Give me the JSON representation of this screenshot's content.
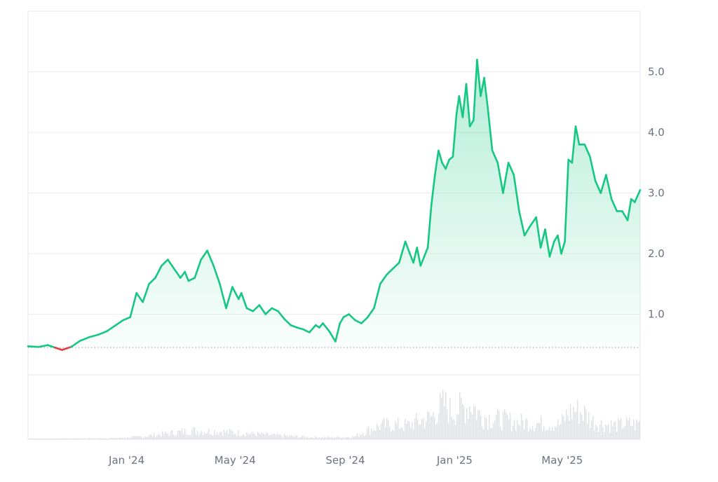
{
  "chart_data": {
    "type": "area",
    "y_axis_side": "right",
    "yticks": [
      1.0,
      2.0,
      3.0,
      4.0,
      5.0
    ],
    "ytick_labels": [
      "1.0",
      "2.0",
      "3.0",
      "4.0",
      "5.0"
    ],
    "ylim": [
      0,
      6
    ],
    "xlim": [
      "2023-09-13",
      "2025-07-27"
    ],
    "xtick_dates": [
      "2024-01-01",
      "2024-05-01",
      "2024-09-01",
      "2025-01-01",
      "2025-05-01"
    ],
    "xtick_labels": [
      "Jan '24",
      "May '24",
      "Sep '24",
      "Jan '25",
      "May '25"
    ],
    "baseline": 0.45,
    "colors": {
      "up_line": "#16c784",
      "down_line": "#ea3943",
      "baseline": "#9ca3af",
      "grid": "#ececec",
      "volume": "#d1d5db"
    },
    "series": [
      {
        "x": [
          "2023-09-13",
          "2023-09-25",
          "2023-10-05",
          "2023-10-13",
          "2023-10-21",
          "2023-10-31",
          "2023-11-10",
          "2023-11-20",
          "2023-11-30",
          "2023-12-10",
          "2023-12-20",
          "2023-12-28",
          "2024-01-05",
          "2024-01-12",
          "2024-01-19",
          "2024-01-26",
          "2024-02-02",
          "2024-02-09",
          "2024-02-16",
          "2024-02-23",
          "2024-03-01",
          "2024-03-06",
          "2024-03-10",
          "2024-03-17",
          "2024-03-24",
          "2024-03-31",
          "2024-04-07",
          "2024-04-14",
          "2024-04-21",
          "2024-04-28",
          "2024-05-05",
          "2024-05-08",
          "2024-05-14",
          "2024-05-21",
          "2024-05-28",
          "2024-06-04",
          "2024-06-11",
          "2024-06-18",
          "2024-06-25",
          "2024-07-02",
          "2024-07-09",
          "2024-07-16",
          "2024-07-23",
          "2024-07-30",
          "2024-08-03",
          "2024-08-07",
          "2024-08-14",
          "2024-08-21",
          "2024-08-26",
          "2024-08-30",
          "2024-09-05",
          "2024-09-12",
          "2024-09-19",
          "2024-09-26",
          "2024-10-03",
          "2024-10-10",
          "2024-10-17",
          "2024-10-24",
          "2024-10-31",
          "2024-11-07",
          "2024-11-12",
          "2024-11-16",
          "2024-11-20",
          "2024-11-24",
          "2024-11-28",
          "2024-12-02",
          "2024-12-06",
          "2024-12-10",
          "2024-12-14",
          "2024-12-18",
          "2024-12-22",
          "2024-12-26",
          "2024-12-30",
          "2025-01-03",
          "2025-01-06",
          "2025-01-10",
          "2025-01-14",
          "2025-01-18",
          "2025-01-22",
          "2025-01-26",
          "2025-01-30",
          "2025-02-03",
          "2025-02-07",
          "2025-02-12",
          "2025-02-18",
          "2025-02-24",
          "2025-03-02",
          "2025-03-08",
          "2025-03-14",
          "2025-03-20",
          "2025-03-26",
          "2025-04-02",
          "2025-04-07",
          "2025-04-12",
          "2025-04-17",
          "2025-04-22",
          "2025-04-26",
          "2025-04-30",
          "2025-05-04",
          "2025-05-08",
          "2025-05-12",
          "2025-05-16",
          "2025-05-20",
          "2025-05-26",
          "2025-06-01",
          "2025-06-07",
          "2025-06-13",
          "2025-06-19",
          "2025-06-25",
          "2025-07-01",
          "2025-07-07",
          "2025-07-13",
          "2025-07-17",
          "2025-07-21",
          "2025-07-27"
        ],
        "y": [
          0.47,
          0.46,
          0.49,
          0.45,
          0.41,
          0.46,
          0.56,
          0.62,
          0.66,
          0.72,
          0.82,
          0.9,
          0.95,
          1.35,
          1.2,
          1.5,
          1.6,
          1.8,
          1.9,
          1.75,
          1.6,
          1.7,
          1.55,
          1.6,
          1.9,
          2.05,
          1.8,
          1.5,
          1.1,
          1.45,
          1.25,
          1.35,
          1.1,
          1.05,
          1.15,
          1.0,
          1.1,
          1.05,
          0.92,
          0.82,
          0.78,
          0.75,
          0.7,
          0.82,
          0.78,
          0.85,
          0.72,
          0.55,
          0.85,
          0.95,
          1.0,
          0.9,
          0.85,
          0.95,
          1.1,
          1.5,
          1.65,
          1.75,
          1.85,
          2.2,
          2.0,
          1.85,
          2.1,
          1.8,
          1.95,
          2.1,
          2.8,
          3.3,
          3.7,
          3.5,
          3.4,
          3.55,
          3.6,
          4.3,
          4.6,
          4.25,
          4.8,
          4.1,
          4.2,
          5.2,
          4.6,
          4.9,
          4.4,
          3.7,
          3.5,
          3.0,
          3.5,
          3.3,
          2.7,
          2.3,
          2.45,
          2.6,
          2.1,
          2.4,
          1.95,
          2.2,
          2.3,
          2.0,
          2.2,
          3.55,
          3.5,
          4.1,
          3.8,
          3.8,
          3.6,
          3.2,
          3.0,
          3.3,
          2.9,
          2.7,
          2.7,
          2.55,
          2.9,
          2.85,
          3.05
        ]
      }
    ],
    "volume": {
      "x": [
        "2023-09-13",
        "2023-10-15",
        "2023-11-15",
        "2023-12-15",
        "2024-01-15",
        "2024-02-15",
        "2024-03-15",
        "2024-04-15",
        "2024-05-15",
        "2024-06-15",
        "2024-07-15",
        "2024-08-15",
        "2024-09-10",
        "2024-09-25",
        "2024-10-10",
        "2024-10-25",
        "2024-11-08",
        "2024-11-18",
        "2024-11-28",
        "2024-12-05",
        "2024-12-12",
        "2024-12-20",
        "2024-12-28",
        "2025-01-04",
        "2025-01-12",
        "2025-01-20",
        "2025-01-28",
        "2025-02-05",
        "2025-02-15",
        "2025-02-25",
        "2025-03-08",
        "2025-03-20",
        "2025-04-02",
        "2025-04-15",
        "2025-04-28",
        "2025-05-06",
        "2025-05-14",
        "2025-05-24",
        "2025-06-05",
        "2025-06-18",
        "2025-07-01",
        "2025-07-12",
        "2025-07-22",
        "2025-07-27"
      ],
      "values": [
        0.01,
        0.01,
        0.02,
        0.02,
        0.05,
        0.12,
        0.18,
        0.16,
        0.12,
        0.08,
        0.05,
        0.04,
        0.05,
        0.18,
        0.28,
        0.3,
        0.28,
        0.35,
        0.4,
        0.45,
        0.58,
        0.72,
        0.55,
        0.62,
        0.65,
        0.72,
        0.5,
        0.45,
        0.42,
        0.4,
        0.35,
        0.35,
        0.33,
        0.32,
        0.3,
        0.5,
        0.6,
        0.55,
        0.35,
        0.3,
        0.28,
        0.32,
        0.3,
        0.35
      ]
    }
  }
}
